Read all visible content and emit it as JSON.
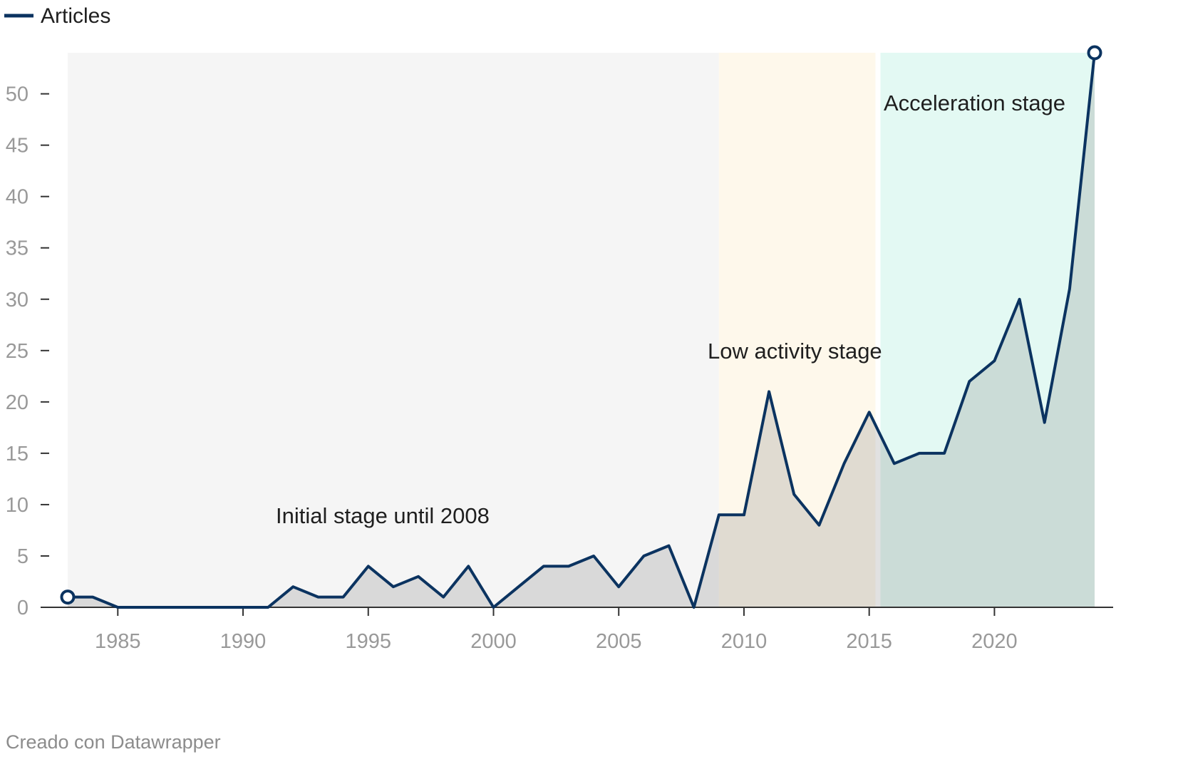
{
  "credit": "Creado con Datawrapper",
  "chart_data": {
    "type": "area",
    "series": [
      {
        "name": "Articles",
        "color": "#0b3360",
        "fill": "rgba(120,120,120,0.22)",
        "x": [
          1983,
          1984,
          1985,
          1986,
          1987,
          1988,
          1989,
          1990,
          1991,
          1992,
          1993,
          1994,
          1995,
          1996,
          1997,
          1998,
          1999,
          2000,
          2001,
          2002,
          2003,
          2004,
          2005,
          2006,
          2007,
          2008,
          2009,
          2010,
          2011,
          2012,
          2013,
          2014,
          2015,
          2016,
          2017,
          2018,
          2019,
          2020,
          2021,
          2022,
          2023,
          2024
        ],
        "values": [
          1,
          1,
          0,
          0,
          0,
          0,
          0,
          0,
          0,
          2,
          1,
          1,
          4,
          2,
          3,
          1,
          4,
          0,
          2,
          4,
          4,
          5,
          2,
          5,
          6,
          0,
          9,
          9,
          21,
          11,
          8,
          14,
          19,
          14,
          15,
          15,
          22,
          24,
          30,
          18,
          31,
          54
        ]
      }
    ],
    "xlim": [
      1983,
      2024
    ],
    "ylim": [
      0,
      54
    ],
    "xticks": [
      1985,
      1990,
      1995,
      2000,
      2005,
      2010,
      2015,
      2020
    ],
    "yticks": [
      0,
      5,
      10,
      15,
      20,
      25,
      30,
      35,
      40,
      45,
      50
    ],
    "grid": false,
    "legend": "top-left",
    "bands": [
      {
        "label": "Initial stage until 2008",
        "from": 1983,
        "to": 2009,
        "color": "#f5f5f5"
      },
      {
        "label": "Low activity stage",
        "from": 2009,
        "to": 2015.25,
        "color": "#fef8eb"
      },
      {
        "label": "Acceleration stage",
        "from": 2015.45,
        "to": 2024,
        "color": "#e3f9f3"
      }
    ]
  }
}
